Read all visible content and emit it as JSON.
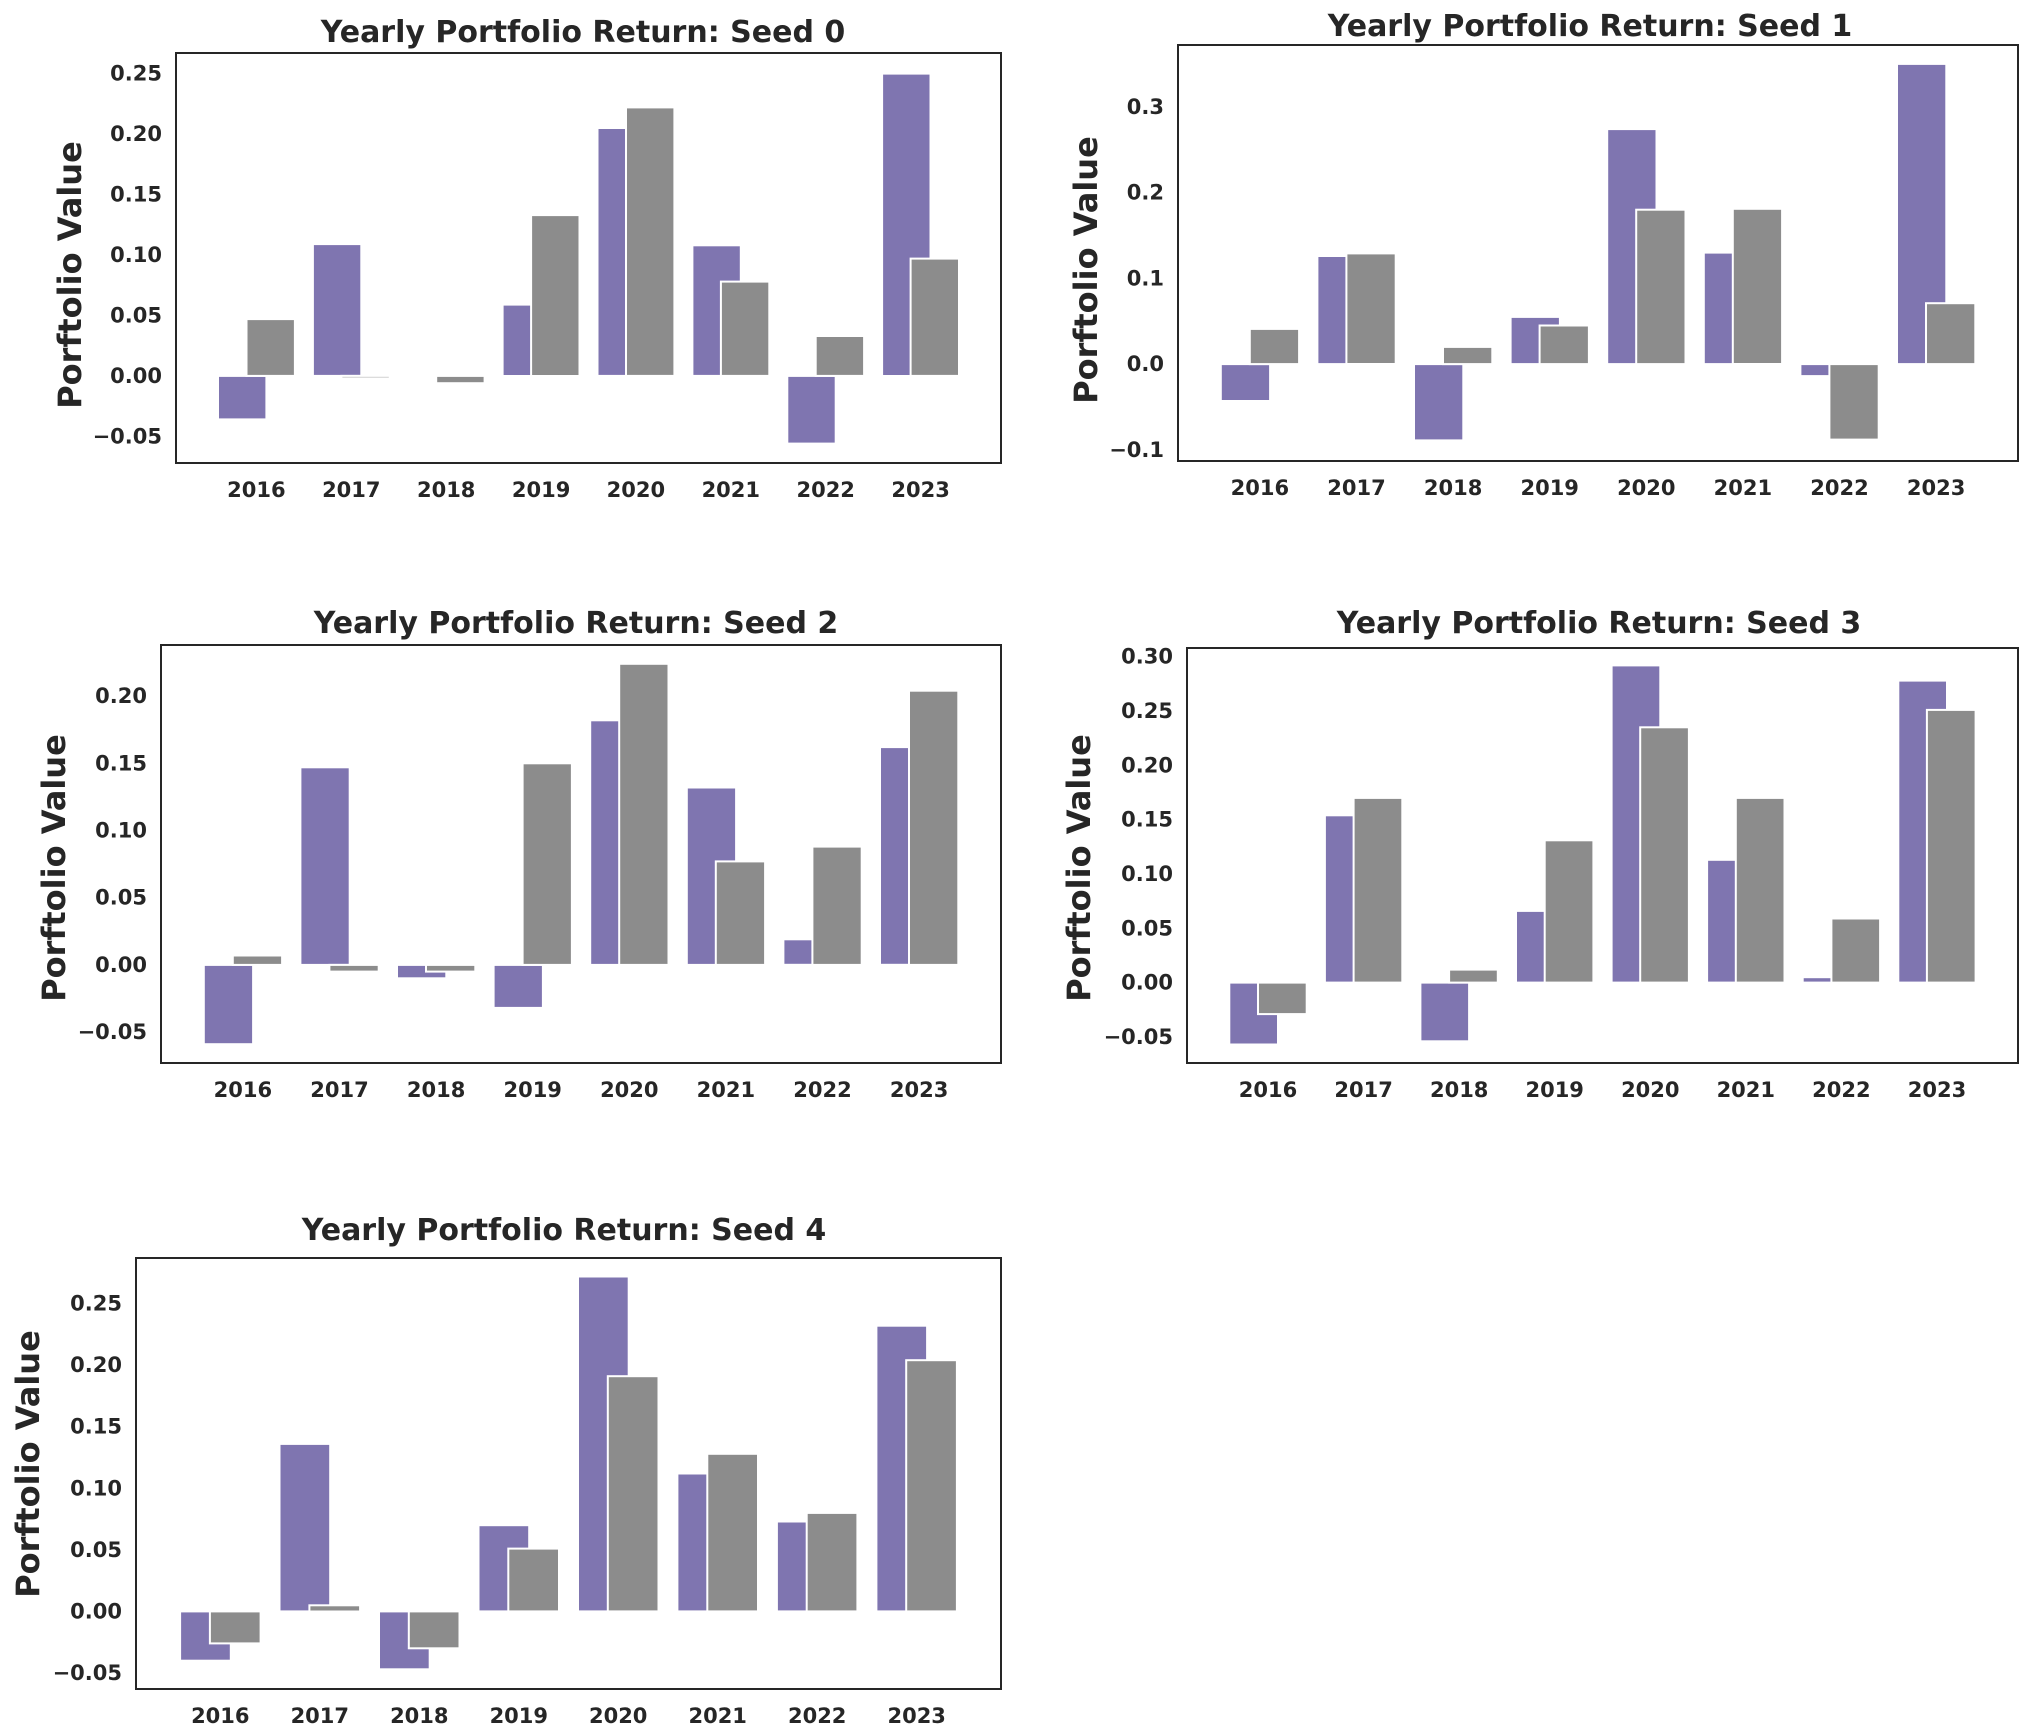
{
  "colors": {
    "series1": "#7f75b0",
    "series2": "#8c8c8c",
    "bar_edge": "#ffffff",
    "text": "#262626"
  },
  "chart_data": [
    {
      "type": "bar",
      "title": "Yearly Portfolio Return: Seed 0",
      "ylabel": "Porftolio Value",
      "categories": [
        "2016",
        "2017",
        "2018",
        "2019",
        "2020",
        "2021",
        "2022",
        "2023"
      ],
      "ylim": [
        -0.072,
        0.267
      ],
      "yticks": [
        -0.05,
        0.0,
        0.05,
        0.1,
        0.15,
        0.2,
        0.25
      ],
      "ytick_labels": [
        "−0.05",
        "0.00",
        "0.05",
        "0.10",
        "0.15",
        "0.20",
        "0.25"
      ],
      "grid": false,
      "series": [
        {
          "values": [
            -0.036,
            0.109,
            0.0,
            0.059,
            0.205,
            0.108,
            -0.056,
            0.25
          ]
        },
        {
          "values": [
            0.047,
            -0.002,
            -0.006,
            0.133,
            0.222,
            0.078,
            0.033,
            0.097
          ]
        }
      ]
    },
    {
      "type": "bar",
      "title": "Yearly Portfolio Return: Seed 1",
      "ylabel": "Porftolio Value",
      "categories": [
        "2016",
        "2017",
        "2018",
        "2019",
        "2020",
        "2021",
        "2022",
        "2023"
      ],
      "ylim": [
        -0.113,
        0.372
      ],
      "yticks": [
        -0.1,
        0.0,
        0.1,
        0.2,
        0.3
      ],
      "ytick_labels": [
        "−0.1",
        "0.0",
        "0.1",
        "0.2",
        "0.3"
      ],
      "grid": false,
      "series": [
        {
          "values": [
            -0.043,
            0.126,
            -0.089,
            0.055,
            0.274,
            0.13,
            -0.014,
            0.35
          ]
        },
        {
          "values": [
            0.041,
            0.129,
            0.02,
            0.045,
            0.18,
            0.181,
            -0.088,
            0.071
          ]
        }
      ]
    },
    {
      "type": "bar",
      "title": "Yearly Portfolio Return: Seed 2",
      "ylabel": "Porftolio Value",
      "categories": [
        "2016",
        "2017",
        "2018",
        "2019",
        "2020",
        "2021",
        "2022",
        "2023"
      ],
      "ylim": [
        -0.073,
        0.238
      ],
      "yticks": [
        -0.05,
        0.0,
        0.05,
        0.1,
        0.15,
        0.2
      ],
      "ytick_labels": [
        "−0.05",
        "0.00",
        "0.05",
        "0.10",
        "0.15",
        "0.20"
      ],
      "grid": false,
      "series": [
        {
          "values": [
            -0.059,
            0.147,
            -0.01,
            -0.032,
            0.182,
            0.132,
            0.019,
            0.162
          ]
        },
        {
          "values": [
            0.007,
            -0.005,
            -0.005,
            0.15,
            0.224,
            0.077,
            0.088,
            0.204
          ]
        }
      ]
    },
    {
      "type": "bar",
      "title": "Yearly Portfolio Return: Seed 3",
      "ylabel": "Porftolio Value",
      "categories": [
        "2016",
        "2017",
        "2018",
        "2019",
        "2020",
        "2021",
        "2022",
        "2023"
      ],
      "ylim": [
        -0.074,
        0.308
      ],
      "yticks": [
        -0.05,
        0.0,
        0.05,
        0.1,
        0.15,
        0.2,
        0.25,
        0.3
      ],
      "ytick_labels": [
        "−0.05",
        "0.00",
        "0.05",
        "0.10",
        "0.15",
        "0.20",
        "0.25",
        "0.30"
      ],
      "grid": false,
      "series": [
        {
          "values": [
            -0.057,
            0.154,
            -0.054,
            0.066,
            0.292,
            0.113,
            0.005,
            0.278
          ]
        },
        {
          "values": [
            -0.029,
            0.17,
            0.012,
            0.131,
            0.235,
            0.17,
            0.059,
            0.251
          ]
        }
      ]
    },
    {
      "type": "bar",
      "title": "Yearly Portfolio Return: Seed 4",
      "ylabel": "Porftolio Value",
      "categories": [
        "2016",
        "2017",
        "2018",
        "2019",
        "2020",
        "2021",
        "2022",
        "2023"
      ],
      "ylim": [
        -0.063,
        0.287
      ],
      "yticks": [
        -0.05,
        0.0,
        0.05,
        0.1,
        0.15,
        0.2,
        0.25
      ],
      "ytick_labels": [
        "−0.05",
        "0.00",
        "0.05",
        "0.10",
        "0.15",
        "0.20",
        "0.25"
      ],
      "grid": false,
      "series": [
        {
          "values": [
            -0.04,
            0.136,
            -0.047,
            0.07,
            0.272,
            0.112,
            0.073,
            0.232
          ]
        },
        {
          "values": [
            -0.026,
            0.005,
            -0.03,
            0.051,
            0.191,
            0.128,
            0.08,
            0.204
          ]
        }
      ]
    }
  ]
}
